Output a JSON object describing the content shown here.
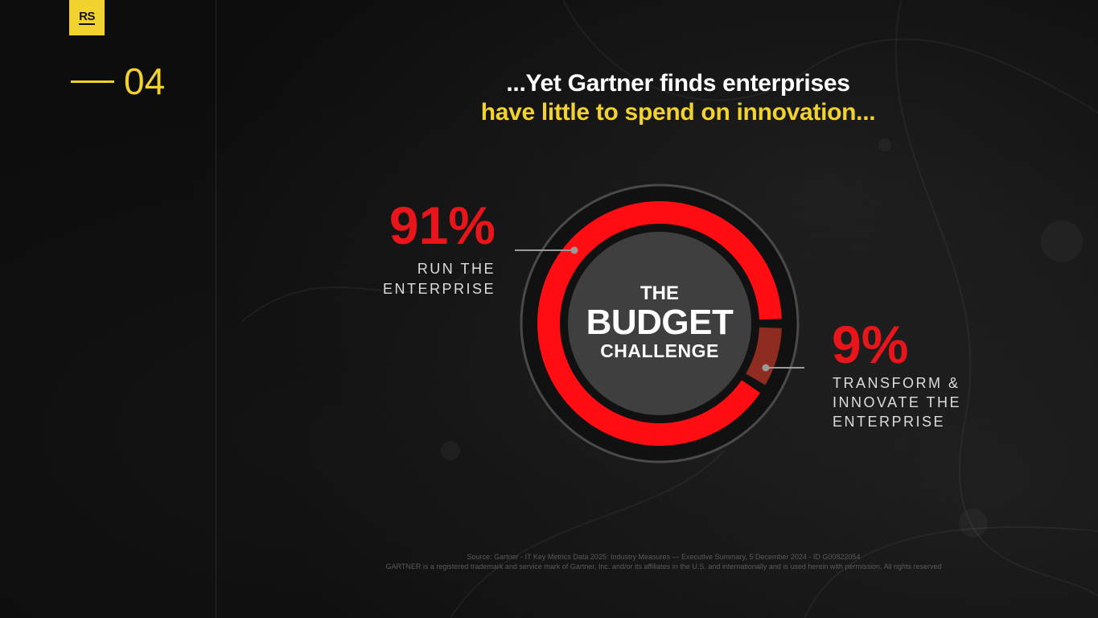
{
  "logo": {
    "text": "RS",
    "color": "#f2d22e"
  },
  "section": {
    "number": "04"
  },
  "headline": {
    "line1": "...Yet Gartner finds enterprises",
    "line2": "have little to spend on innovation..."
  },
  "chart_data": {
    "type": "pie",
    "categories": [
      "RUN THE ENTERPRISE",
      "TRANSFORM & INNOVATE THE ENTERPRISE"
    ],
    "values": [
      91,
      9
    ],
    "colors": [
      "#ff0d12",
      "#8e2c22"
    ],
    "center_text": [
      "THE",
      "BUDGET",
      "CHALLENGE"
    ]
  },
  "callouts": {
    "left": {
      "value": "91%",
      "label": "RUN THE\nENTERPRISE"
    },
    "right": {
      "value": "9%",
      "label": "TRANSFORM &\nINNOVATE THE\nENTERPRISE"
    }
  },
  "footnote": {
    "line1": "Source: Gartner - IT Key Metrics Data 2025: Industry Measures — Executive Summary, 5 December 2024 - ID G00822054",
    "line2": "GARTNER is a registered trademark and service mark of Gartner, Inc. and/or its affiliates in the U.S. and internationally and is used herein with permission. All rights reserved"
  },
  "colors": {
    "accent_yellow": "#f2d22e",
    "accent_red": "#e8151b",
    "background": "#0d0d0d"
  }
}
